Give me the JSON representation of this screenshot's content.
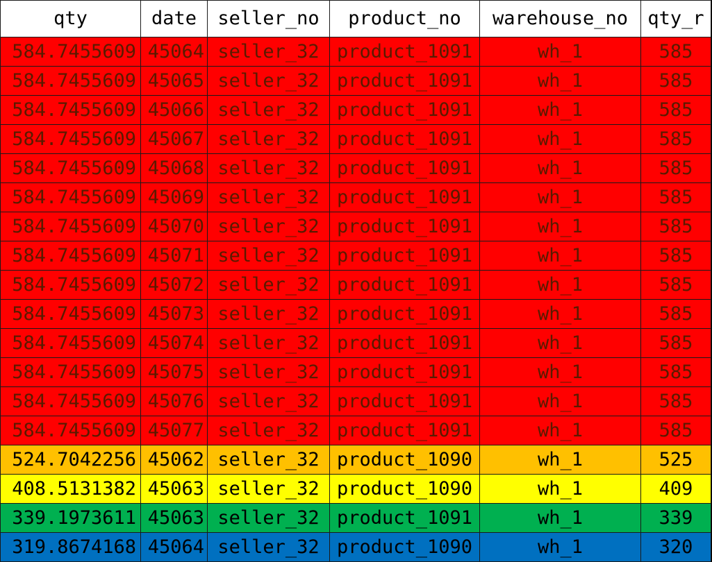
{
  "headers": [
    "qty",
    "date",
    "seller_no",
    "product_no",
    "warehouse_no",
    "qty_r"
  ],
  "rows": [
    {
      "qty": "584.7455609",
      "date": "45064",
      "seller_no": "seller_32",
      "product_no": "product_1091",
      "warehouse_no": "wh_1",
      "qty_r": "585",
      "bg": "#ff0000",
      "fg": "#5a1a00"
    },
    {
      "qty": "584.7455609",
      "date": "45065",
      "seller_no": "seller_32",
      "product_no": "product_1091",
      "warehouse_no": "wh_1",
      "qty_r": "585",
      "bg": "#ff0000",
      "fg": "#5a1a00"
    },
    {
      "qty": "584.7455609",
      "date": "45066",
      "seller_no": "seller_32",
      "product_no": "product_1091",
      "warehouse_no": "wh_1",
      "qty_r": "585",
      "bg": "#ff0000",
      "fg": "#5a1a00"
    },
    {
      "qty": "584.7455609",
      "date": "45067",
      "seller_no": "seller_32",
      "product_no": "product_1091",
      "warehouse_no": "wh_1",
      "qty_r": "585",
      "bg": "#ff0000",
      "fg": "#5a1a00"
    },
    {
      "qty": "584.7455609",
      "date": "45068",
      "seller_no": "seller_32",
      "product_no": "product_1091",
      "warehouse_no": "wh_1",
      "qty_r": "585",
      "bg": "#ff0000",
      "fg": "#5a1a00"
    },
    {
      "qty": "584.7455609",
      "date": "45069",
      "seller_no": "seller_32",
      "product_no": "product_1091",
      "warehouse_no": "wh_1",
      "qty_r": "585",
      "bg": "#ff0000",
      "fg": "#5a1a00"
    },
    {
      "qty": "584.7455609",
      "date": "45070",
      "seller_no": "seller_32",
      "product_no": "product_1091",
      "warehouse_no": "wh_1",
      "qty_r": "585",
      "bg": "#ff0000",
      "fg": "#5a1a00"
    },
    {
      "qty": "584.7455609",
      "date": "45071",
      "seller_no": "seller_32",
      "product_no": "product_1091",
      "warehouse_no": "wh_1",
      "qty_r": "585",
      "bg": "#ff0000",
      "fg": "#5a1a00"
    },
    {
      "qty": "584.7455609",
      "date": "45072",
      "seller_no": "seller_32",
      "product_no": "product_1091",
      "warehouse_no": "wh_1",
      "qty_r": "585",
      "bg": "#ff0000",
      "fg": "#5a1a00"
    },
    {
      "qty": "584.7455609",
      "date": "45073",
      "seller_no": "seller_32",
      "product_no": "product_1091",
      "warehouse_no": "wh_1",
      "qty_r": "585",
      "bg": "#ff0000",
      "fg": "#5a1a00"
    },
    {
      "qty": "584.7455609",
      "date": "45074",
      "seller_no": "seller_32",
      "product_no": "product_1091",
      "warehouse_no": "wh_1",
      "qty_r": "585",
      "bg": "#ff0000",
      "fg": "#5a1a00"
    },
    {
      "qty": "584.7455609",
      "date": "45075",
      "seller_no": "seller_32",
      "product_no": "product_1091",
      "warehouse_no": "wh_1",
      "qty_r": "585",
      "bg": "#ff0000",
      "fg": "#5a1a00"
    },
    {
      "qty": "584.7455609",
      "date": "45076",
      "seller_no": "seller_32",
      "product_no": "product_1091",
      "warehouse_no": "wh_1",
      "qty_r": "585",
      "bg": "#ff0000",
      "fg": "#5a1a00"
    },
    {
      "qty": "584.7455609",
      "date": "45077",
      "seller_no": "seller_32",
      "product_no": "product_1091",
      "warehouse_no": "wh_1",
      "qty_r": "585",
      "bg": "#ff0000",
      "fg": "#5a1a00"
    },
    {
      "qty": "524.7042256",
      "date": "45062",
      "seller_no": "seller_32",
      "product_no": "product_1090",
      "warehouse_no": "wh_1",
      "qty_r": "525",
      "bg": "#ffc000",
      "fg": "#000000"
    },
    {
      "qty": "408.5131382",
      "date": "45063",
      "seller_no": "seller_32",
      "product_no": "product_1090",
      "warehouse_no": "wh_1",
      "qty_r": "409",
      "bg": "#ffff00",
      "fg": "#000000"
    },
    {
      "qty": "339.1973611",
      "date": "45063",
      "seller_no": "seller_32",
      "product_no": "product_1091",
      "warehouse_no": "wh_1",
      "qty_r": "339",
      "bg": "#00b050",
      "fg": "#000000"
    },
    {
      "qty": "319.8674168",
      "date": "45064",
      "seller_no": "seller_32",
      "product_no": "product_1090",
      "warehouse_no": "wh_1",
      "qty_r": "320",
      "bg": "#0070c0",
      "fg": "#000000"
    }
  ]
}
